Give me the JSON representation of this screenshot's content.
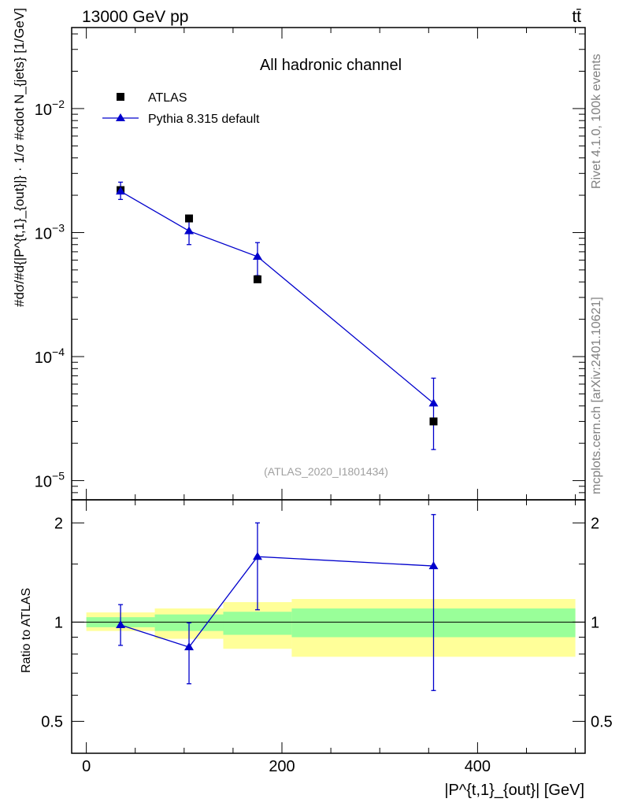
{
  "chart_data": {
    "type": "scatter",
    "header_left": "13000 GeV pp",
    "header_right": "tt̄",
    "title": "All hadronic channel",
    "watermark": "(ATLAS_2020_I1801434)",
    "side_label_top": "Rivet 4.1.0,  100k events",
    "side_label_bottom": "mcplots.cern.ch [arXiv:2401.10621]",
    "ylabel_main": "#dσ/#d{|P^{t,1}_{out}|} · 1/σ #cdot N_{jets} [1/GeV]",
    "ylabel_ratio": "Ratio to ATLAS",
    "xlabel": "|P^{t,1}_{out}| [GeV]",
    "xlim": [
      -15,
      510
    ],
    "ylim_main": [
      7e-06,
      0.045
    ],
    "ylim_ratio": [
      0.4,
      2.35
    ],
    "yscale_main": "log",
    "yscale_ratio": "log",
    "x_ticks": [
      0,
      200,
      400
    ],
    "y_ticks_main": [
      {
        "value": 0.01,
        "base": "10",
        "exp": "−2"
      },
      {
        "value": 0.001,
        "base": "10",
        "exp": "−3"
      },
      {
        "value": 0.0001,
        "base": "10",
        "exp": "−4"
      },
      {
        "value": 1e-05,
        "base": "10",
        "exp": "−5"
      }
    ],
    "y_ticks_ratio": [
      {
        "value": 0.5,
        "label": "0.5"
      },
      {
        "value": 1,
        "label": "1"
      },
      {
        "value": 2,
        "label": "2"
      }
    ],
    "legend_position": "top-left",
    "series": [
      {
        "name": "ATLAS",
        "marker": "square",
        "color": "#000000",
        "x": [
          35,
          105,
          175,
          355
        ],
        "y": [
          0.0022,
          0.0013,
          0.00042,
          3e-05
        ]
      },
      {
        "name": "Pythia 8.315 default",
        "marker": "triangle",
        "color": "#0000cc",
        "x": [
          35,
          105,
          175,
          355
        ],
        "y": [
          0.00215,
          0.00103,
          0.00064,
          4.2e-05
        ],
        "yerr_low": [
          0.00185,
          0.0008,
          0.00045,
          1.78e-05
        ],
        "yerr_high": [
          0.00255,
          0.00123,
          0.00083,
          6.7e-05
        ]
      }
    ],
    "ratio": {
      "reference_line": 1,
      "bands": [
        {
          "x_low": 0,
          "x_high": 70,
          "green": [
            0.965,
            1.035
          ],
          "yellow": [
            0.94,
            1.07
          ]
        },
        {
          "x_low": 70,
          "x_high": 140,
          "green": [
            0.94,
            1.055
          ],
          "yellow": [
            0.89,
            1.1
          ]
        },
        {
          "x_low": 140,
          "x_high": 210,
          "green": [
            0.915,
            1.075
          ],
          "yellow": [
            0.83,
            1.15
          ]
        },
        {
          "x_low": 210,
          "x_high": 500,
          "green": [
            0.9,
            1.1
          ],
          "yellow": [
            0.785,
            1.175
          ]
        }
      ],
      "band_colors": {
        "green": "#99ff99",
        "yellow": "#ffff99"
      },
      "series": {
        "name": "Pythia 8.315 default",
        "color": "#0000cc",
        "x": [
          35,
          105,
          175,
          355
        ],
        "y": [
          0.98,
          0.84,
          1.58,
          1.48
        ],
        "yerr_low": [
          0.85,
          0.65,
          1.09,
          0.62
        ],
        "yerr_high": [
          1.13,
          0.995,
          2.0,
          2.12
        ]
      }
    }
  }
}
